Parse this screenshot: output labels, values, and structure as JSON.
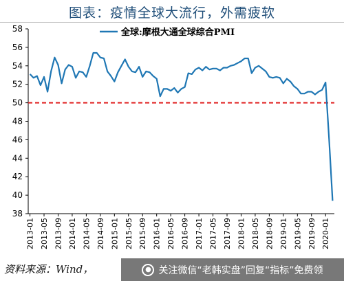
{
  "header": {
    "title": "图表：疫情全球大流行，外需疲软"
  },
  "source": {
    "text": "资料来源：Wind，"
  },
  "watermark": {
    "text": "关注微信“老韩实盘”回复“指标”免费领",
    "icon": "wechat-icon"
  },
  "colors": {
    "series": "#1f77b4",
    "reference": "#e02020",
    "axis": "#000000"
  },
  "chart_data": {
    "type": "line",
    "legend": {
      "label": "全球:摩根大通全球综合PMI",
      "position": "top-center"
    },
    "ylim": [
      38,
      58
    ],
    "yticks": [
      38,
      40,
      42,
      44,
      46,
      48,
      50,
      52,
      54,
      56,
      58
    ],
    "reference_line": {
      "y": 50,
      "style": "dashed"
    },
    "xticks": [
      "2013-01",
      "2013-05",
      "2013-09",
      "2014-01",
      "2014-05",
      "2014-09",
      "2015-01",
      "2015-05",
      "2015-09",
      "2016-01",
      "2016-05",
      "2016-09",
      "2017-01",
      "2017-05",
      "2017-09",
      "2018-01",
      "2018-05",
      "2018-09",
      "2019-01",
      "2019-05",
      "2019-09",
      "2020-01"
    ],
    "series": [
      {
        "name": "全球:摩根大通全球综合PMI",
        "x": [
          "2013-01",
          "2013-02",
          "2013-03",
          "2013-04",
          "2013-05",
          "2013-06",
          "2013-07",
          "2013-08",
          "2013-09",
          "2013-10",
          "2013-11",
          "2013-12",
          "2014-01",
          "2014-02",
          "2014-03",
          "2014-04",
          "2014-05",
          "2014-06",
          "2014-07",
          "2014-08",
          "2014-09",
          "2014-10",
          "2014-11",
          "2014-12",
          "2015-01",
          "2015-02",
          "2015-03",
          "2015-04",
          "2015-05",
          "2015-06",
          "2015-07",
          "2015-08",
          "2015-09",
          "2015-10",
          "2015-11",
          "2015-12",
          "2016-01",
          "2016-02",
          "2016-03",
          "2016-04",
          "2016-05",
          "2016-06",
          "2016-07",
          "2016-08",
          "2016-09",
          "2016-10",
          "2016-11",
          "2016-12",
          "2017-01",
          "2017-02",
          "2017-03",
          "2017-04",
          "2017-05",
          "2017-06",
          "2017-07",
          "2017-08",
          "2017-09",
          "2017-10",
          "2017-11",
          "2017-12",
          "2018-01",
          "2018-02",
          "2018-03",
          "2018-04",
          "2018-05",
          "2018-06",
          "2018-07",
          "2018-08",
          "2018-09",
          "2018-10",
          "2018-11",
          "2018-12",
          "2019-01",
          "2019-02",
          "2019-03",
          "2019-04",
          "2019-05",
          "2019-06",
          "2019-07",
          "2019-08",
          "2019-09",
          "2019-10",
          "2019-11",
          "2019-12",
          "2020-01",
          "2020-02",
          "2020-03"
        ],
        "values": [
          53.1,
          52.7,
          52.9,
          51.9,
          52.8,
          51.2,
          53.4,
          54.9,
          54.1,
          52.1,
          53.6,
          54.1,
          53.9,
          52.7,
          53.4,
          53.3,
          52.8,
          54.0,
          55.4,
          55.4,
          54.9,
          54.8,
          53.4,
          52.9,
          52.3,
          53.3,
          54.0,
          54.7,
          53.9,
          53.4,
          53.3,
          53.9,
          52.8,
          53.4,
          53.3,
          52.9,
          52.6,
          50.7,
          51.5,
          51.5,
          51.3,
          51.6,
          51.1,
          51.5,
          51.7,
          53.2,
          53.1,
          53.6,
          53.8,
          53.5,
          53.9,
          53.6,
          53.7,
          53.7,
          53.5,
          53.8,
          53.8,
          54.0,
          54.1,
          54.3,
          54.5,
          54.8,
          54.8,
          53.2,
          53.8,
          54.0,
          53.7,
          53.4,
          52.8,
          52.7,
          52.8,
          52.7,
          52.1,
          52.6,
          52.3,
          51.8,
          51.5,
          51.0,
          51.0,
          51.2,
          51.2,
          50.9,
          51.2,
          51.4,
          52.2,
          46.1,
          39.4
        ]
      }
    ]
  }
}
